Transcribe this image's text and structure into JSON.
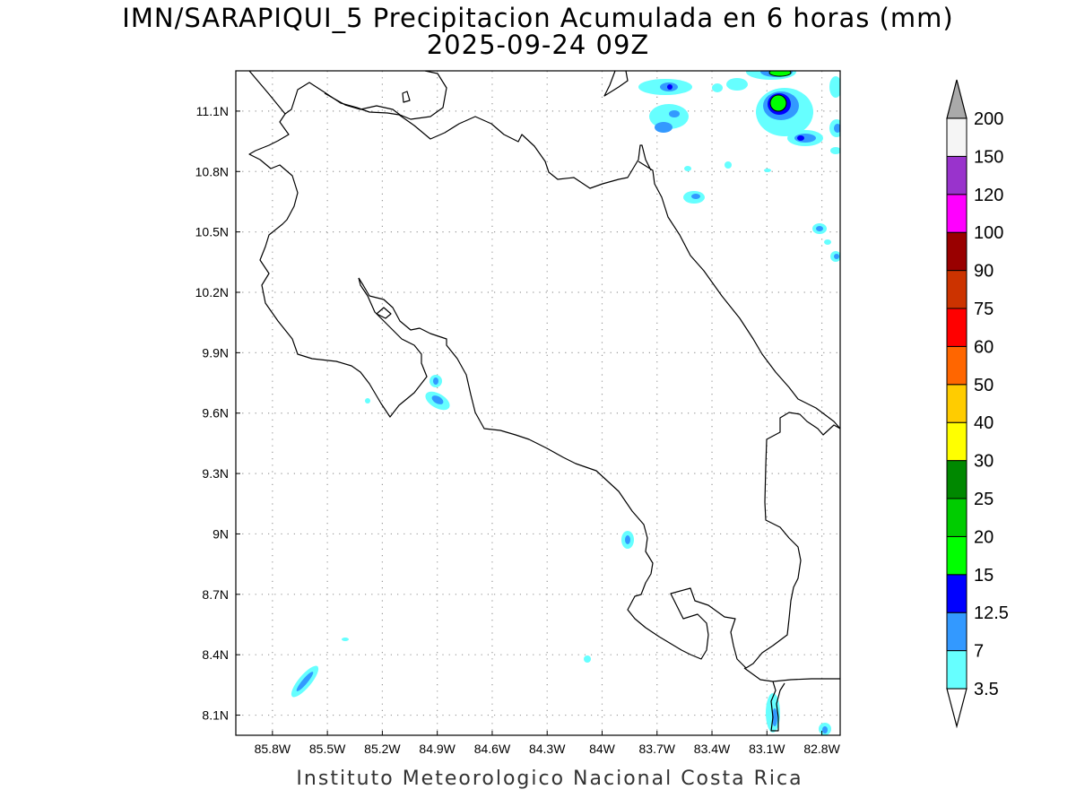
{
  "header": {
    "title_line1": "IMN/SARAPIQUI_5 Precipitacion Acumulada en 6 horas (mm)",
    "title_line2": "2025-09-24 09Z"
  },
  "footer": {
    "credit": "Instituto Meteorologico Nacional Costa Rica"
  },
  "map": {
    "lon_range": [
      -86.0,
      -82.7
    ],
    "lat_range": [
      8.0,
      11.3
    ],
    "x_ticks": [
      "85.8W",
      "85.5W",
      "85.2W",
      "84.9W",
      "84.6W",
      "84.3W",
      "84W",
      "83.7W",
      "83.4W",
      "83.1W",
      "82.8W"
    ],
    "x_tick_values": [
      -85.8,
      -85.5,
      -85.2,
      -84.9,
      -84.6,
      -84.3,
      -84.0,
      -83.7,
      -83.4,
      -83.1,
      -82.8
    ],
    "y_ticks": [
      "11.1N",
      "10.8N",
      "10.5N",
      "10.2N",
      "9.9N",
      "9.6N",
      "9.3N",
      "9N",
      "8.7N",
      "8.4N",
      "8.1N"
    ],
    "y_tick_values": [
      11.1,
      10.8,
      10.5,
      10.2,
      9.9,
      9.6,
      9.3,
      9.0,
      8.7,
      8.4,
      8.1
    ],
    "grid": true,
    "grid_style": "dotted"
  },
  "colorbar": {
    "position": "right",
    "levels": [
      "3.5",
      "7",
      "12.5",
      "15",
      "20",
      "25",
      "30",
      "40",
      "50",
      "60",
      "75",
      "90",
      "100",
      "120",
      "150",
      "200"
    ],
    "colors": [
      "#66ffff",
      "#3399ff",
      "#0000ff",
      "#00ff00",
      "#00cc00",
      "#008800",
      "#ffff00",
      "#ffcc00",
      "#ff6600",
      "#ff0000",
      "#cc3300",
      "#990000",
      "#ff00ff",
      "#9933cc",
      "#f5f5f5"
    ],
    "upper_arrow_color": "#aaaaaa",
    "lower_arrow_color": "#ffffff"
  }
}
